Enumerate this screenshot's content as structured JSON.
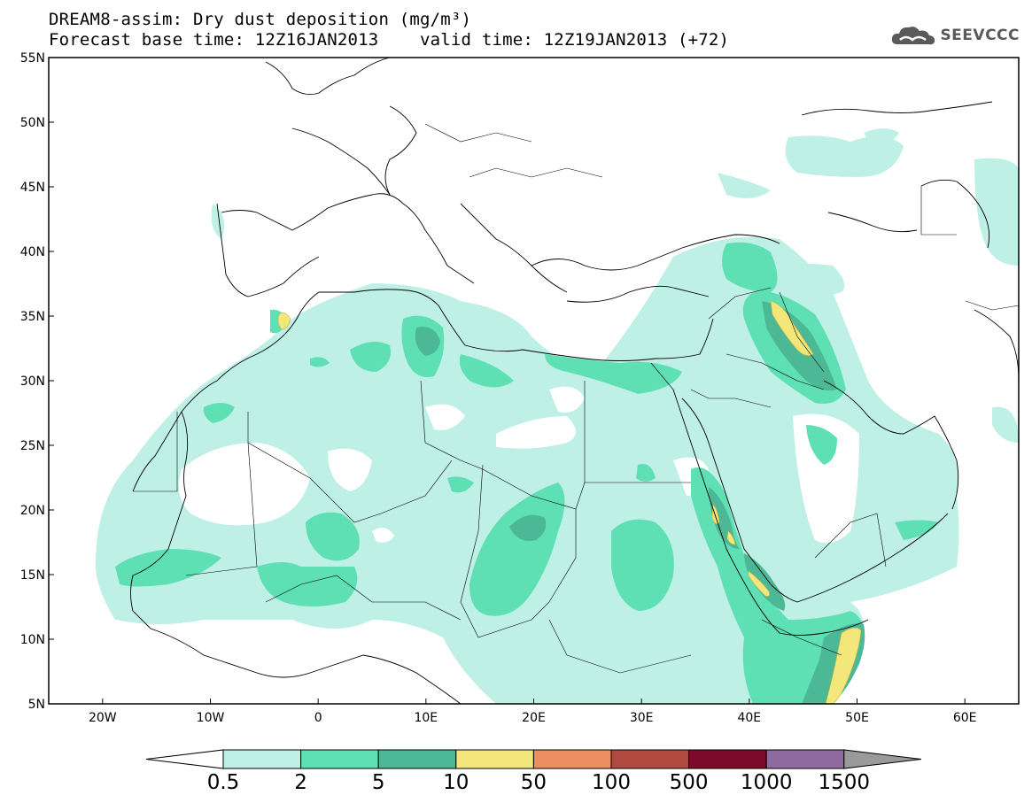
{
  "header": {
    "title_line1": "DREAM8-assim: Dry dust deposition (mg/m³)",
    "title_line2": "Forecast base time: 12Z16JAN2013    valid time: 12Z19JAN2013 (+72)",
    "logo_text": "SEEVCCC"
  },
  "map": {
    "lon_range": [
      -25,
      65
    ],
    "lat_range": [
      5,
      55
    ],
    "lat_ticks": [
      "55N",
      "50N",
      "45N",
      "40N",
      "35N",
      "30N",
      "25N",
      "20N",
      "15N",
      "10N",
      "5N"
    ],
    "lon_ticks": [
      "20W",
      "10W",
      "0",
      "10E",
      "20E",
      "30E",
      "40E",
      "50E",
      "60E"
    ]
  },
  "legend": {
    "labels": [
      "0.5",
      "2",
      "5",
      "10",
      "50",
      "100",
      "500",
      "1000",
      "1500"
    ],
    "colors": [
      "#bff0e6",
      "#5ee0b4",
      "#4db896",
      "#f3e67a",
      "#ec8f63",
      "#b04a3e",
      "#7d0a2a",
      "#8e6aa0"
    ],
    "below_color": "#ffffff",
    "above_color": "#9a9a9a"
  }
}
